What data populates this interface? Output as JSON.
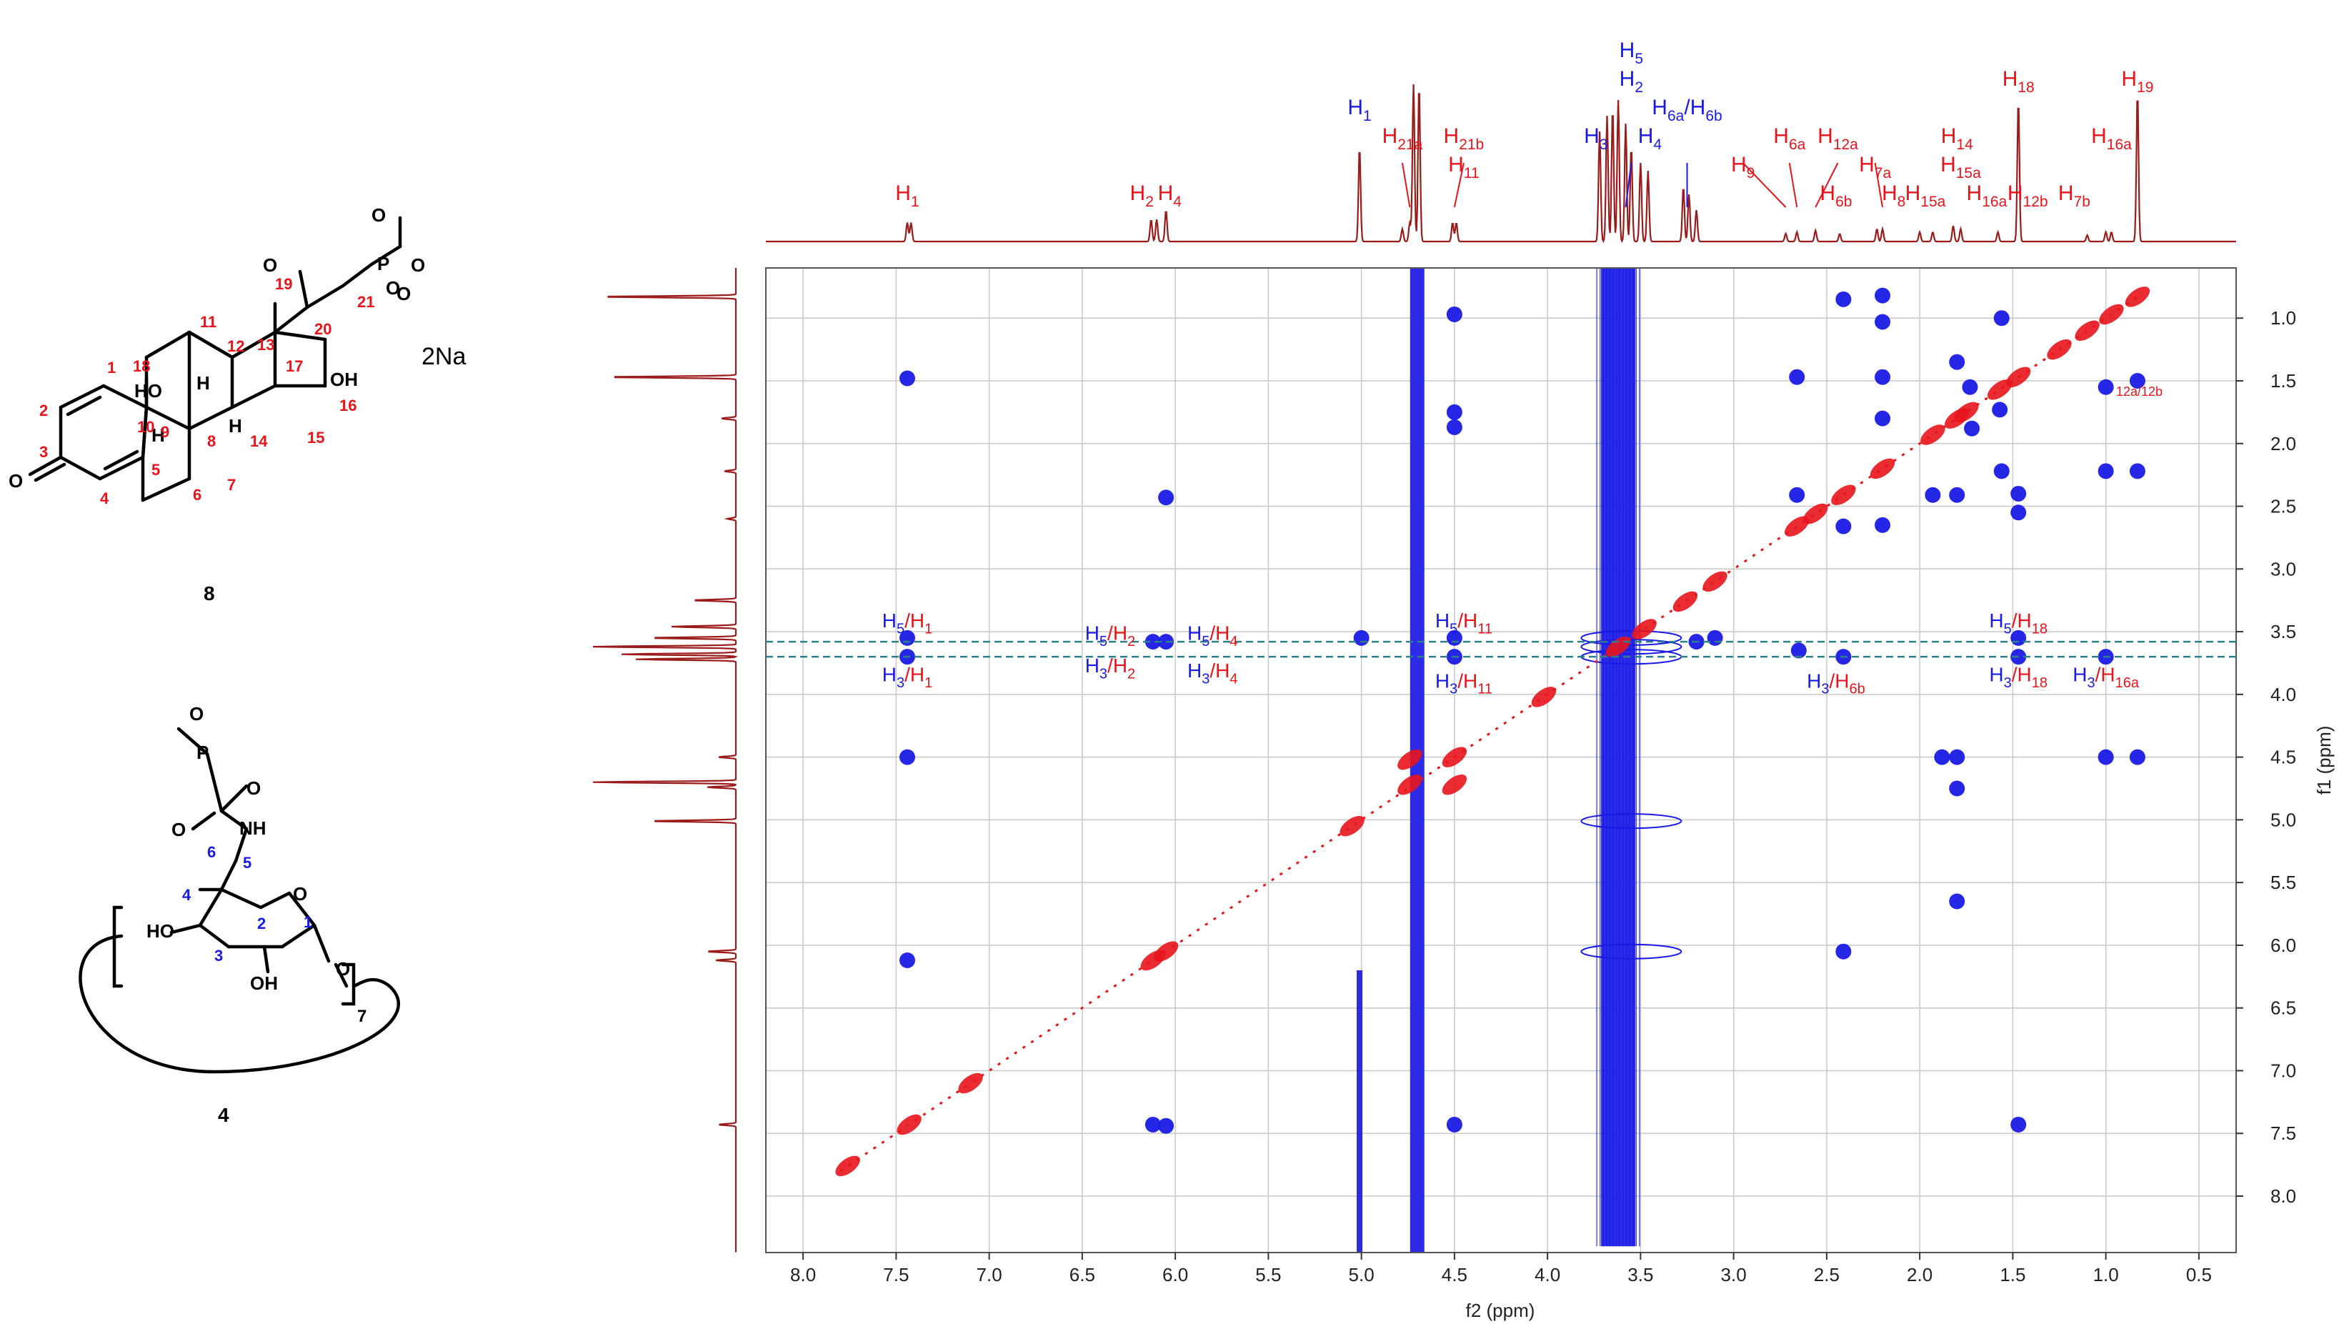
{
  "colors": {
    "red": "#e8141c",
    "blue": "#1a1ae6",
    "darkred": "#9b1b1b",
    "grid": "#c8c8c8",
    "dashed": "#2f7f8a"
  },
  "structures": {
    "compound_8": {
      "label": "8",
      "counterion": "2Na",
      "atoms": {
        "ho11": "HO",
        "oh17": "OH",
        "o3": "O",
        "o20": "O",
        "o21": "O",
        "p": "P",
        "opa": "O",
        "opb": "O",
        "opc": "O",
        "h8": "H",
        "h14": "H",
        "h9": "H"
      },
      "numbers": [
        "1",
        "2",
        "3",
        "4",
        "5",
        "6",
        "7",
        "8",
        "9",
        "10",
        "11",
        "12",
        "13",
        "14",
        "15",
        "16",
        "17",
        "18",
        "19",
        "20",
        "21"
      ]
    },
    "compound_4": {
      "label": "4",
      "subscript": "7",
      "atoms": {
        "p": "P",
        "o1": "O",
        "o2": "O",
        "o3": "O",
        "nh": "NH",
        "ring_o": "O",
        "glyc_o": "O",
        "ho3": "HO",
        "oh2": "OH"
      },
      "numbers": [
        "1",
        "2",
        "3",
        "4",
        "5",
        "6"
      ]
    }
  },
  "chart_data": {
    "type": "heatmap",
    "title": "",
    "xlabel": "f2 (ppm)",
    "ylabel": "f1 (ppm)",
    "xlim": [
      8.2,
      0.3
    ],
    "ylim": [
      0.6,
      8.45
    ],
    "x_ticks": [
      "8.0",
      "7.5",
      "7.0",
      "6.5",
      "6.0",
      "5.5",
      "5.0",
      "4.5",
      "4.0",
      "3.5",
      "3.0",
      "2.5",
      "2.0",
      "1.5",
      "1.0",
      "0.5"
    ],
    "y_ticks": [
      "1.0",
      "1.5",
      "2.0",
      "2.5",
      "3.0",
      "3.5",
      "4.0",
      "4.5",
      "5.0",
      "5.5",
      "6.0",
      "6.5",
      "7.0",
      "7.5",
      "8.0"
    ],
    "grid": true,
    "dashed_lines_f1": [
      3.58,
      3.7
    ],
    "top_projection_peaks": [
      {
        "x": 7.44,
        "h": 0.12
      },
      {
        "x": 7.42,
        "h": 0.12
      },
      {
        "x": 6.13,
        "h": 0.14
      },
      {
        "x": 6.1,
        "h": 0.14
      },
      {
        "x": 6.05,
        "h": 0.2
      },
      {
        "x": 5.01,
        "h": 0.6
      },
      {
        "x": 4.78,
        "h": 0.08
      },
      {
        "x": 4.74,
        "h": 0.12
      },
      {
        "x": 4.72,
        "h": 1.0
      },
      {
        "x": 4.69,
        "h": 1.0
      },
      {
        "x": 4.51,
        "h": 0.12
      },
      {
        "x": 4.49,
        "h": 0.12
      },
      {
        "x": 3.72,
        "h": 0.7
      },
      {
        "x": 3.68,
        "h": 0.8
      },
      {
        "x": 3.65,
        "h": 0.85
      },
      {
        "x": 3.62,
        "h": 0.9
      },
      {
        "x": 3.58,
        "h": 0.75
      },
      {
        "x": 3.55,
        "h": 0.6
      },
      {
        "x": 3.5,
        "h": 0.5
      },
      {
        "x": 3.46,
        "h": 0.45
      },
      {
        "x": 3.27,
        "h": 0.35
      },
      {
        "x": 3.24,
        "h": 0.3
      },
      {
        "x": 3.2,
        "h": 0.2
      },
      {
        "x": 2.72,
        "h": 0.05
      },
      {
        "x": 2.66,
        "h": 0.06
      },
      {
        "x": 2.56,
        "h": 0.07
      },
      {
        "x": 2.43,
        "h": 0.05
      },
      {
        "x": 2.23,
        "h": 0.08
      },
      {
        "x": 2.2,
        "h": 0.08
      },
      {
        "x": 2.0,
        "h": 0.06
      },
      {
        "x": 1.93,
        "h": 0.06
      },
      {
        "x": 1.82,
        "h": 0.1
      },
      {
        "x": 1.78,
        "h": 0.08
      },
      {
        "x": 1.58,
        "h": 0.06
      },
      {
        "x": 1.47,
        "h": 0.9
      },
      {
        "x": 1.1,
        "h": 0.04
      },
      {
        "x": 1.0,
        "h": 0.06
      },
      {
        "x": 0.97,
        "h": 0.06
      },
      {
        "x": 0.83,
        "h": 0.95
      }
    ],
    "side_projection_peaks": [
      {
        "y": 0.83,
        "h": 0.95
      },
      {
        "y": 1.47,
        "h": 0.9
      },
      {
        "y": 1.8,
        "h": 0.1
      },
      {
        "y": 2.22,
        "h": 0.08
      },
      {
        "y": 2.6,
        "h": 0.06
      },
      {
        "y": 3.25,
        "h": 0.3
      },
      {
        "y": 3.46,
        "h": 0.45
      },
      {
        "y": 3.55,
        "h": 0.6
      },
      {
        "y": 3.62,
        "h": 1.0
      },
      {
        "y": 3.68,
        "h": 0.8
      },
      {
        "y": 3.72,
        "h": 0.7
      },
      {
        "y": 4.5,
        "h": 0.12
      },
      {
        "y": 4.7,
        "h": 1.0
      },
      {
        "y": 4.74,
        "h": 0.2
      },
      {
        "y": 5.01,
        "h": 0.6
      },
      {
        "y": 6.05,
        "h": 0.2
      },
      {
        "y": 6.12,
        "h": 0.14
      },
      {
        "y": 7.43,
        "h": 0.12
      }
    ],
    "diagonal_red": [
      {
        "x": 7.43,
        "y": 7.43
      },
      {
        "x": 7.76,
        "y": 7.76
      },
      {
        "x": 7.1,
        "y": 7.1
      },
      {
        "x": 6.12,
        "y": 6.12
      },
      {
        "x": 6.05,
        "y": 6.05
      },
      {
        "x": 5.05,
        "y": 5.05
      },
      {
        "x": 4.74,
        "y": 4.52
      },
      {
        "x": 4.74,
        "y": 4.72
      },
      {
        "x": 4.5,
        "y": 4.5
      },
      {
        "x": 4.5,
        "y": 4.72
      },
      {
        "x": 4.02,
        "y": 4.02
      },
      {
        "x": 3.62,
        "y": 3.62
      },
      {
        "x": 3.48,
        "y": 3.48
      },
      {
        "x": 3.26,
        "y": 3.26
      },
      {
        "x": 3.1,
        "y": 3.1
      },
      {
        "x": 2.66,
        "y": 2.66
      },
      {
        "x": 2.56,
        "y": 2.56
      },
      {
        "x": 2.41,
        "y": 2.41
      },
      {
        "x": 2.2,
        "y": 2.2
      },
      {
        "x": 1.93,
        "y": 1.93
      },
      {
        "x": 1.8,
        "y": 1.8
      },
      {
        "x": 1.75,
        "y": 1.75
      },
      {
        "x": 1.57,
        "y": 1.57
      },
      {
        "x": 1.47,
        "y": 1.47
      },
      {
        "x": 1.25,
        "y": 1.25
      },
      {
        "x": 1.1,
        "y": 1.1
      },
      {
        "x": 0.97,
        "y": 0.97
      },
      {
        "x": 0.83,
        "y": 0.83
      }
    ],
    "cross_peaks_blue": [
      {
        "x": 7.44,
        "y": 1.48
      },
      {
        "x": 7.44,
        "y": 3.55
      },
      {
        "x": 7.44,
        "y": 3.7
      },
      {
        "x": 7.44,
        "y": 4.5
      },
      {
        "x": 7.44,
        "y": 6.12
      },
      {
        "x": 6.12,
        "y": 7.43
      },
      {
        "x": 6.05,
        "y": 7.44
      },
      {
        "x": 6.05,
        "y": 2.43
      },
      {
        "x": 6.12,
        "y": 3.58
      },
      {
        "x": 6.05,
        "y": 3.58
      },
      {
        "x": 4.5,
        "y": 0.97
      },
      {
        "x": 4.5,
        "y": 1.75
      },
      {
        "x": 4.5,
        "y": 1.87
      },
      {
        "x": 4.5,
        "y": 3.55
      },
      {
        "x": 4.5,
        "y": 3.7
      },
      {
        "x": 4.5,
        "y": 7.43
      },
      {
        "x": 2.66,
        "y": 1.47
      },
      {
        "x": 2.41,
        "y": 0.85
      },
      {
        "x": 2.41,
        "y": 6.05
      },
      {
        "x": 2.41,
        "y": 3.7
      },
      {
        "x": 2.2,
        "y": 0.82
      },
      {
        "x": 2.2,
        "y": 1.03
      },
      {
        "x": 2.2,
        "y": 1.47
      },
      {
        "x": 2.2,
        "y": 1.8
      },
      {
        "x": 2.66,
        "y": 2.41
      },
      {
        "x": 2.65,
        "y": 3.65
      },
      {
        "x": 2.41,
        "y": 2.66
      },
      {
        "x": 1.93,
        "y": 2.41
      },
      {
        "x": 1.8,
        "y": 2.41
      },
      {
        "x": 1.8,
        "y": 4.5
      },
      {
        "x": 1.88,
        "y": 4.5
      },
      {
        "x": 1.8,
        "y": 5.65
      },
      {
        "x": 1.8,
        "y": 4.75
      },
      {
        "x": 1.56,
        "y": 1.0
      },
      {
        "x": 1.56,
        "y": 2.22
      },
      {
        "x": 1.47,
        "y": 2.4
      },
      {
        "x": 1.47,
        "y": 2.55
      },
      {
        "x": 1.47,
        "y": 3.55
      },
      {
        "x": 1.47,
        "y": 3.7
      },
      {
        "x": 1.47,
        "y": 7.43
      },
      {
        "x": 1.0,
        "y": 1.55
      },
      {
        "x": 1.0,
        "y": 2.22
      },
      {
        "x": 1.0,
        "y": 3.7
      },
      {
        "x": 1.0,
        "y": 4.5
      },
      {
        "x": 0.83,
        "y": 1.5
      },
      {
        "x": 0.83,
        "y": 2.22
      },
      {
        "x": 0.83,
        "y": 4.5
      },
      {
        "x": 1.73,
        "y": 1.55
      },
      {
        "x": 1.72,
        "y": 1.88
      },
      {
        "x": 1.8,
        "y": 1.35
      },
      {
        "x": 1.57,
        "y": 1.73
      },
      {
        "x": 2.2,
        "y": 2.65
      },
      {
        "x": 3.2,
        "y": 3.58
      },
      {
        "x": 3.1,
        "y": 3.55
      },
      {
        "x": 5.0,
        "y": 3.55
      }
    ],
    "streaks_blue": [
      {
        "x": 4.7,
        "y1": 0.6,
        "y2": 8.45,
        "w": 5
      },
      {
        "x": 3.62,
        "y1": 0.6,
        "y2": 8.4,
        "w": 12
      },
      {
        "x": 5.01,
        "y1": 6.2,
        "y2": 8.45,
        "w": 2
      }
    ],
    "top_labels": [
      {
        "parts": [
          [
            "H",
            "blue"
          ],
          [
            "1",
            "blue"
          ]
        ],
        "x": 5.01,
        "row": 0
      },
      {
        "parts": [
          [
            "H",
            "red"
          ],
          [
            "1",
            "red"
          ]
        ],
        "x": 7.44,
        "row": 3
      },
      {
        "parts": [
          [
            "H",
            "red"
          ],
          [
            "2",
            "red"
          ]
        ],
        "x": 6.18,
        "row": 3
      },
      {
        "parts": [
          [
            "H",
            "red"
          ],
          [
            "4",
            "red"
          ]
        ],
        "x": 6.03,
        "row": 3
      },
      {
        "parts": [
          [
            "H",
            "red"
          ],
          [
            "21a",
            "red"
          ]
        ],
        "x": 4.78,
        "row": 1
      },
      {
        "parts": [
          [
            "H",
            "red"
          ],
          [
            "21b",
            "red"
          ]
        ],
        "x": 4.45,
        "row": 1
      },
      {
        "parts": [
          [
            "H",
            "red"
          ],
          [
            "11",
            "red"
          ]
        ],
        "x": 4.45,
        "row": 2
      },
      {
        "parts": [
          [
            "H",
            "blue"
          ],
          [
            "3",
            "blue"
          ]
        ],
        "x": 3.74,
        "row": 1
      },
      {
        "parts": [
          [
            "H",
            "blue"
          ],
          [
            "5",
            "blue"
          ]
        ],
        "x": 3.55,
        "row": -2
      },
      {
        "parts": [
          [
            "H",
            "blue"
          ],
          [
            "2",
            "blue"
          ]
        ],
        "x": 3.55,
        "row": -1
      },
      {
        "parts": [
          [
            "H",
            "blue"
          ],
          [
            "4",
            "blue"
          ]
        ],
        "x": 3.45,
        "row": 1
      },
      {
        "parts": [
          [
            "H",
            "blue"
          ],
          [
            "6a",
            "blue"
          ],
          [
            "/H",
            "blue"
          ],
          [
            "6b",
            "blue"
          ]
        ],
        "x": 3.25,
        "row": 0
      },
      {
        "parts": [
          [
            "H",
            "red"
          ],
          [
            "9",
            "red"
          ]
        ],
        "x": 2.95,
        "row": 2
      },
      {
        "parts": [
          [
            "H",
            "red"
          ],
          [
            "6a",
            "red"
          ]
        ],
        "x": 2.7,
        "row": 1
      },
      {
        "parts": [
          [
            "H",
            "red"
          ],
          [
            "12a",
            "red"
          ]
        ],
        "x": 2.44,
        "row": 1
      },
      {
        "parts": [
          [
            "H",
            "red"
          ],
          [
            "6b",
            "red"
          ]
        ],
        "x": 2.45,
        "row": 3
      },
      {
        "parts": [
          [
            "H",
            "red"
          ],
          [
            "7a",
            "red"
          ]
        ],
        "x": 2.24,
        "row": 2
      },
      {
        "parts": [
          [
            "H",
            "red"
          ],
          [
            "8",
            "red"
          ]
        ],
        "x": 2.14,
        "row": 3
      },
      {
        "parts": [
          [
            "H",
            "red"
          ],
          [
            "14",
            "red"
          ]
        ],
        "x": 1.8,
        "row": 1
      },
      {
        "parts": [
          [
            "H",
            "red"
          ],
          [
            "15a",
            "red"
          ]
        ],
        "x": 1.97,
        "row": 3
      },
      {
        "parts": [
          [
            "H",
            "red"
          ],
          [
            "15a",
            "red"
          ]
        ],
        "x": 1.78,
        "row": 2
      },
      {
        "parts": [
          [
            "H",
            "red"
          ],
          [
            "16a",
            "red"
          ]
        ],
        "x": 1.64,
        "row": 3
      },
      {
        "parts": [
          [
            "H",
            "red"
          ],
          [
            "12b",
            "red"
          ]
        ],
        "x": 1.42,
        "row": 3
      },
      {
        "parts": [
          [
            "H",
            "red"
          ],
          [
            "18",
            "red"
          ]
        ],
        "x": 1.47,
        "row": -1
      },
      {
        "parts": [
          [
            "H",
            "red"
          ],
          [
            "19",
            "red"
          ]
        ],
        "x": 0.83,
        "row": -1
      },
      {
        "parts": [
          [
            "H",
            "red"
          ],
          [
            "16a",
            "red"
          ]
        ],
        "x": 0.97,
        "row": 1
      },
      {
        "parts": [
          [
            "H",
            "red"
          ],
          [
            "7b",
            "red"
          ]
        ],
        "x": 1.17,
        "row": 3
      }
    ],
    "cross_labels": [
      {
        "parts": [
          [
            "H",
            "blue"
          ],
          [
            "5",
            "blue"
          ],
          [
            "/H",
            "red"
          ],
          [
            "1",
            "red"
          ]
        ],
        "x": 7.44,
        "y": 3.42
      },
      {
        "parts": [
          [
            "H",
            "blue"
          ],
          [
            "3",
            "blue"
          ],
          [
            "/H",
            "red"
          ],
          [
            "1",
            "red"
          ]
        ],
        "x": 7.44,
        "y": 3.85
      },
      {
        "parts": [
          [
            "H",
            "blue"
          ],
          [
            "5",
            "blue"
          ],
          [
            "/H",
            "red"
          ],
          [
            "2",
            "red"
          ]
        ],
        "x": 6.35,
        "y": 3.52
      },
      {
        "parts": [
          [
            "H",
            "blue"
          ],
          [
            "3",
            "blue"
          ],
          [
            "/H",
            "red"
          ],
          [
            "2",
            "red"
          ]
        ],
        "x": 6.35,
        "y": 3.78
      },
      {
        "parts": [
          [
            "H",
            "blue"
          ],
          [
            "5",
            "blue"
          ],
          [
            "/H",
            "red"
          ],
          [
            "4",
            "red"
          ]
        ],
        "x": 5.8,
        "y": 3.52
      },
      {
        "parts": [
          [
            "H",
            "blue"
          ],
          [
            "3",
            "blue"
          ],
          [
            "/H",
            "red"
          ],
          [
            "4",
            "red"
          ]
        ],
        "x": 5.8,
        "y": 3.82
      },
      {
        "parts": [
          [
            "H",
            "blue"
          ],
          [
            "5",
            "blue"
          ],
          [
            "/H",
            "red"
          ],
          [
            "11",
            "red"
          ]
        ],
        "x": 4.45,
        "y": 3.42
      },
      {
        "parts": [
          [
            "H",
            "blue"
          ],
          [
            "3",
            "blue"
          ],
          [
            "/H",
            "red"
          ],
          [
            "11",
            "red"
          ]
        ],
        "x": 4.45,
        "y": 3.9
      },
      {
        "parts": [
          [
            "H",
            "blue"
          ],
          [
            "3",
            "blue"
          ],
          [
            "/H",
            "red"
          ],
          [
            "6b",
            "red"
          ]
        ],
        "x": 2.45,
        "y": 3.9
      },
      {
        "parts": [
          [
            "H",
            "blue"
          ],
          [
            "5",
            "blue"
          ],
          [
            "/H",
            "red"
          ],
          [
            "18",
            "red"
          ]
        ],
        "x": 1.47,
        "y": 3.42
      },
      {
        "parts": [
          [
            "H",
            "blue"
          ],
          [
            "3",
            "blue"
          ],
          [
            "/H",
            "red"
          ],
          [
            "18",
            "red"
          ]
        ],
        "x": 1.47,
        "y": 3.85
      },
      {
        "parts": [
          [
            "H",
            "blue"
          ],
          [
            "3",
            "blue"
          ],
          [
            "/H",
            "red"
          ],
          [
            "16a",
            "red"
          ]
        ],
        "x": 1.0,
        "y": 3.85
      }
    ],
    "inline_note": {
      "text": "12a/12b",
      "x": 0.82,
      "y": 1.62
    }
  }
}
